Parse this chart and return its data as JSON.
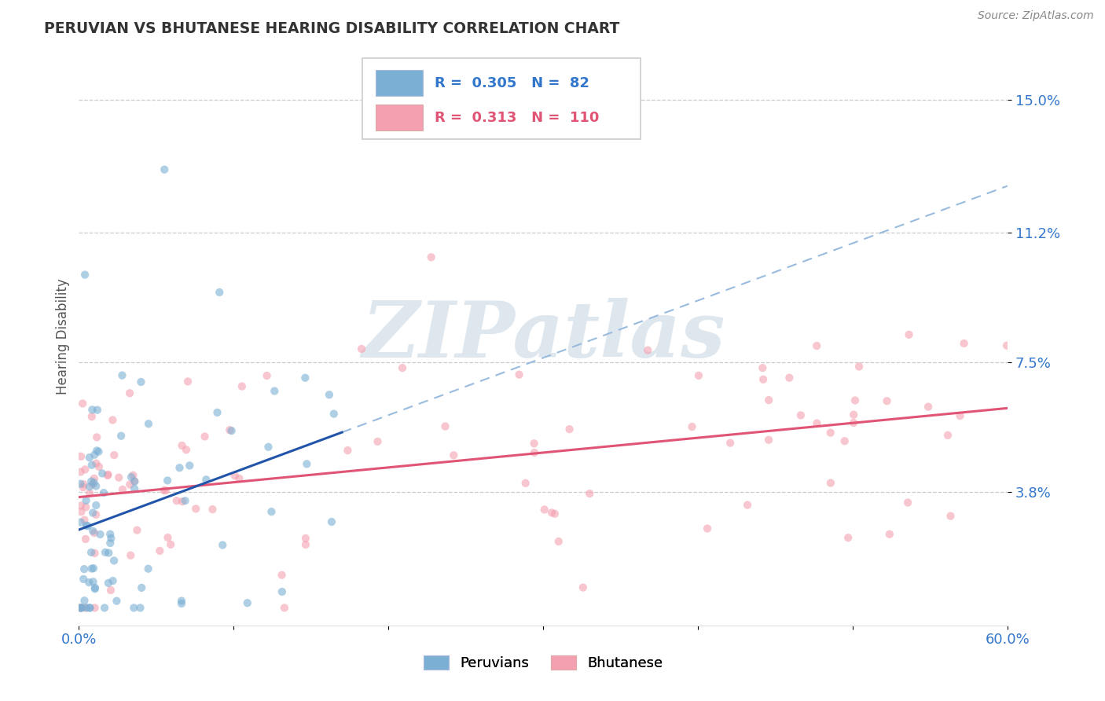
{
  "title": "PERUVIAN VS BHUTANESE HEARING DISABILITY CORRELATION CHART",
  "source": "Source: ZipAtlas.com",
  "ylabel": "Hearing Disability",
  "xlim": [
    0.0,
    0.6
  ],
  "ylim": [
    0.0,
    0.165
  ],
  "ytick_positions": [
    0.038,
    0.075,
    0.112,
    0.15
  ],
  "ytick_labels": [
    "3.8%",
    "7.5%",
    "11.2%",
    "15.0%"
  ],
  "grid_color": "#cccccc",
  "blue_color": "#7bafd4",
  "pink_color": "#f4a0b0",
  "blue_line_color": "#2255aa",
  "pink_line_color": "#e05575",
  "dashed_line_color": "#99bbdd",
  "legend_r_blue": "0.305",
  "legend_n_blue": "82",
  "legend_r_pink": "0.313",
  "legend_n_pink": "110",
  "blue_text_color": "#3377cc",
  "pink_text_color": "#e05575",
  "axis_text_color": "#3377cc",
  "title_color": "#333333",
  "source_color": "#888888",
  "watermark_color": "#d0dce8"
}
